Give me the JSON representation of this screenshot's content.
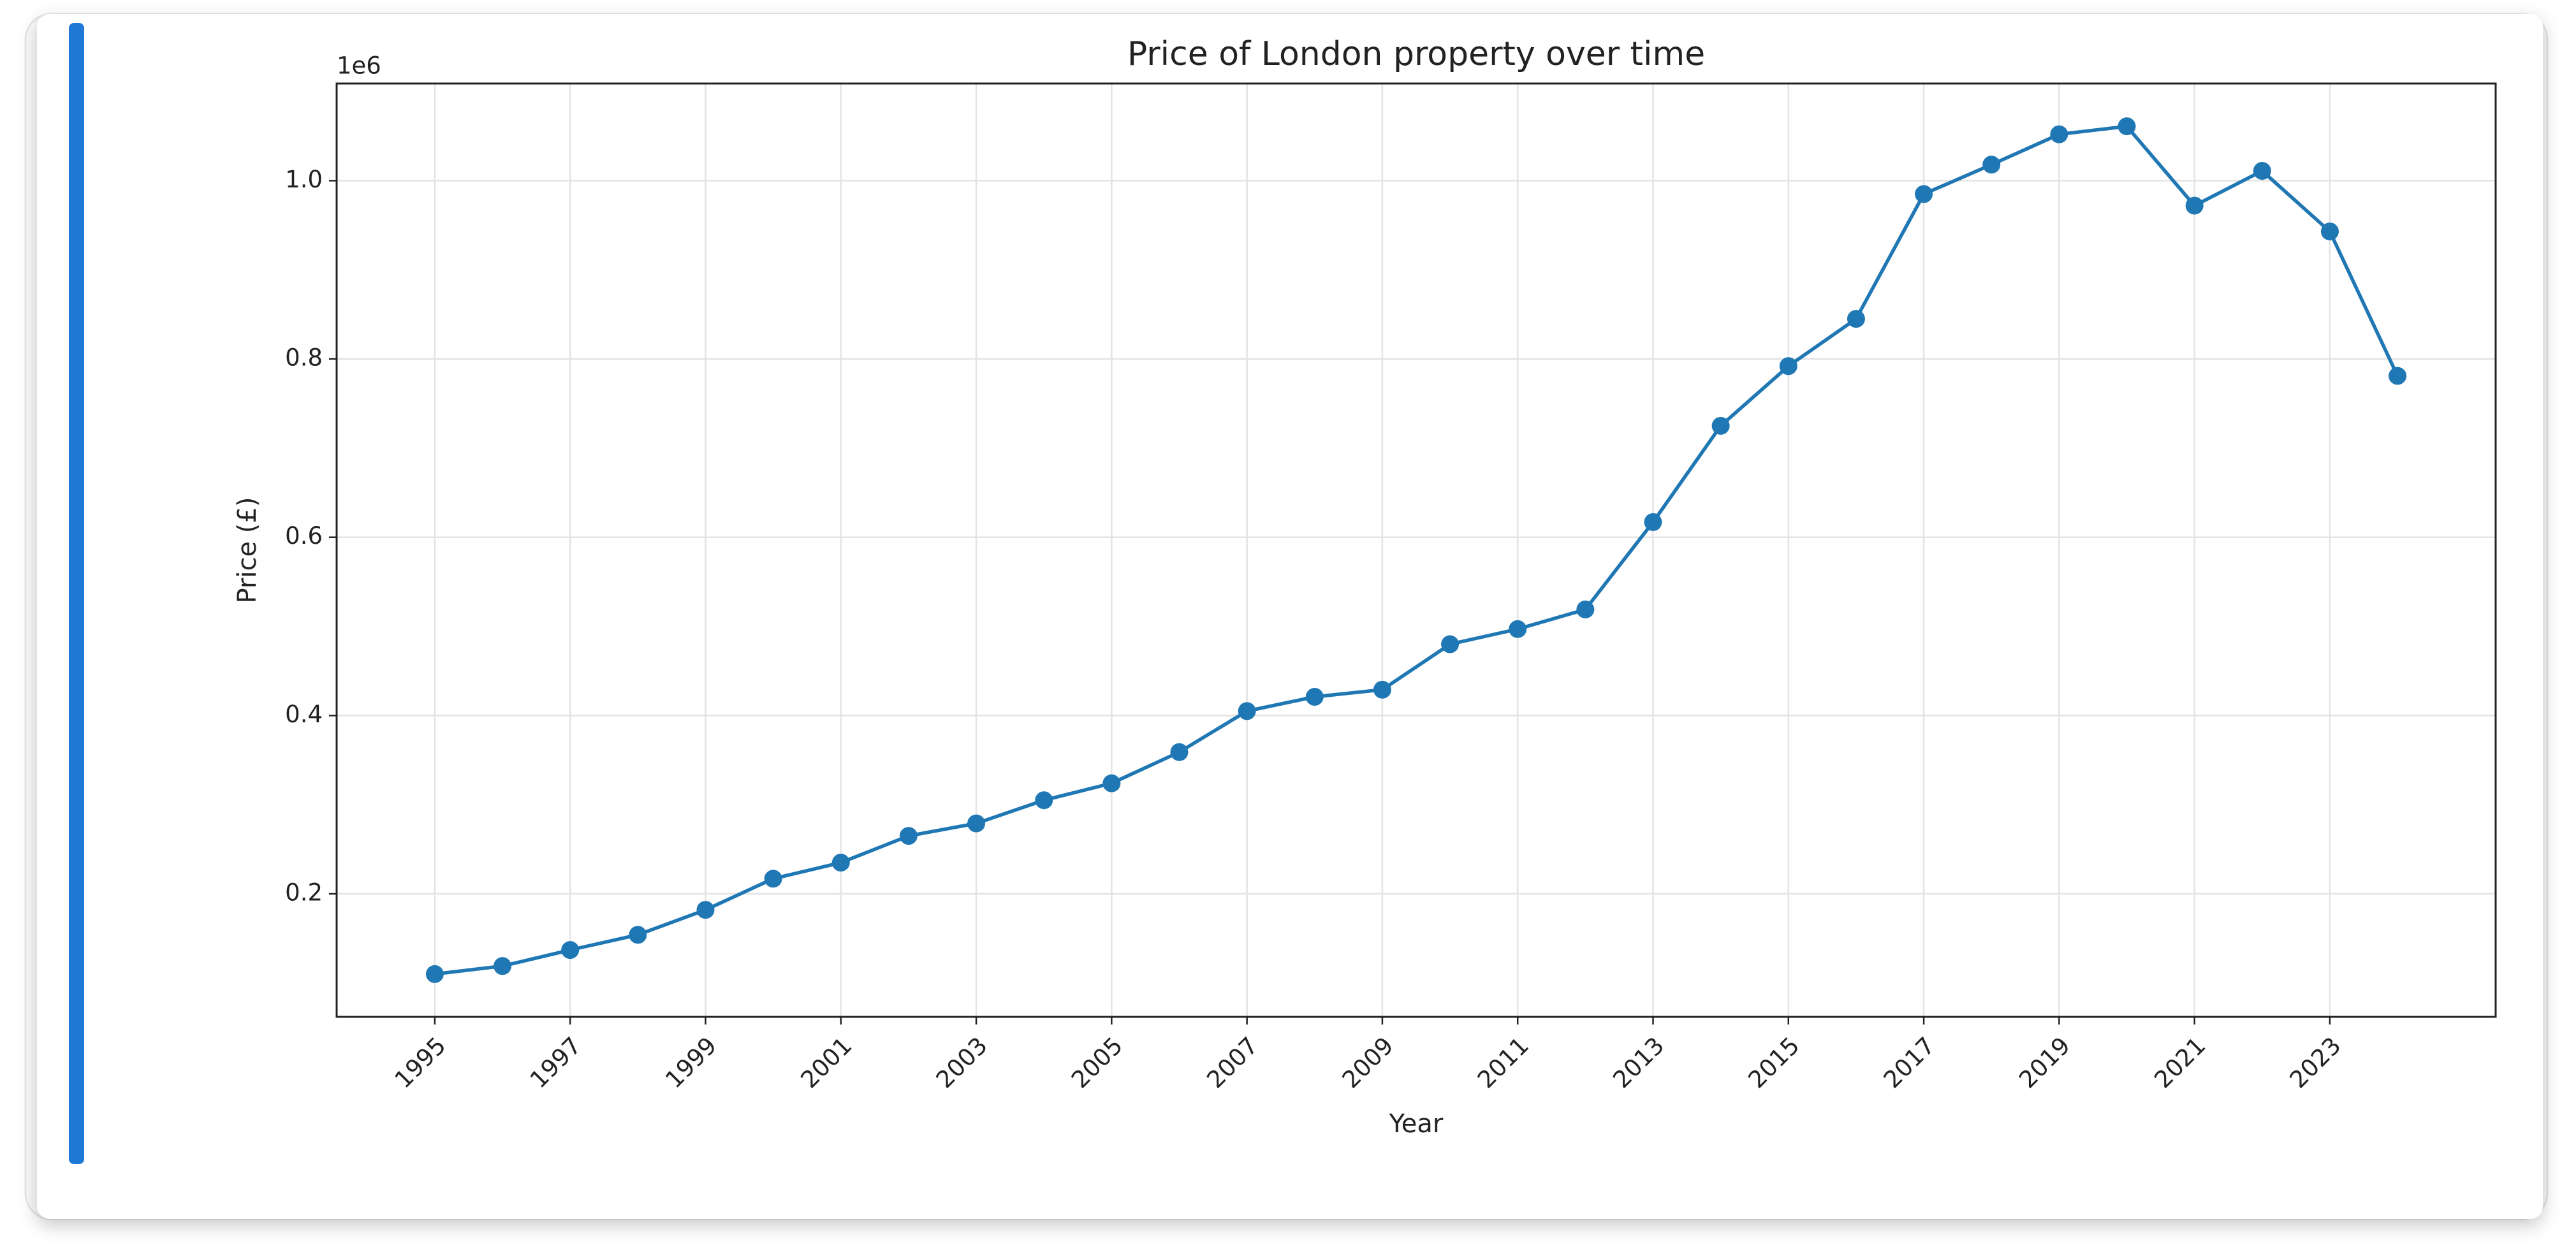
{
  "chart_data": {
    "type": "line",
    "title": "Price of London property over time",
    "x_label": "Year",
    "y_label": "Price (£)",
    "y_offset_label": "1e6",
    "x": [
      1995,
      1996,
      1997,
      1998,
      1999,
      2000,
      2001,
      2002,
      2003,
      2004,
      2005,
      2006,
      2007,
      2008,
      2009,
      2010,
      2011,
      2012,
      2013,
      2014,
      2015,
      2016,
      2017,
      2018,
      2019,
      2020,
      2021,
      2022,
      2023,
      2024
    ],
    "values": [
      0.11,
      0.119,
      0.137,
      0.154,
      0.182,
      0.217,
      0.235,
      0.265,
      0.279,
      0.305,
      0.324,
      0.359,
      0.405,
      0.421,
      0.429,
      0.48,
      0.497,
      0.519,
      0.617,
      0.725,
      0.792,
      0.845,
      0.985,
      1.018,
      1.052,
      1.061,
      0.972,
      1.011,
      0.943,
      0.781
    ],
    "color": "#1f77b4",
    "xlim": [
      1993.55,
      2025.45
    ],
    "xticks": [
      1995,
      1997,
      1999,
      2001,
      2003,
      2005,
      2007,
      2009,
      2011,
      2013,
      2015,
      2017,
      2019,
      2021,
      2023
    ],
    "ylim": [
      0.062,
      1.109
    ],
    "yticks": [
      0.2,
      0.4,
      0.6,
      0.8,
      {
        "value": 1,
        "label": "1.0"
      }
    ],
    "grid": true
  }
}
